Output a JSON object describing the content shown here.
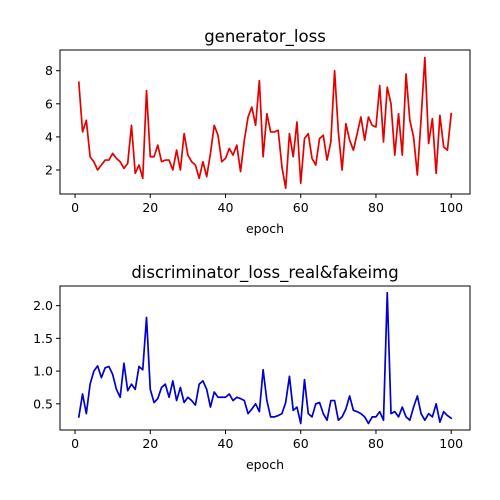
{
  "chart_data": [
    {
      "type": "line",
      "title": "generator_loss",
      "xlabel": "epoch",
      "ylabel": "",
      "xlim": [
        -4,
        105
      ],
      "ylim": [
        0.55,
        9.25
      ],
      "xticks": [
        0,
        20,
        40,
        60,
        80,
        100
      ],
      "yticks": [
        2,
        4,
        6,
        8
      ],
      "grid": false,
      "series": [
        {
          "color": "#e50000",
          "x": [
            1,
            2,
            3,
            4,
            5,
            6,
            7,
            8,
            9,
            10,
            11,
            12,
            13,
            14,
            15,
            16,
            17,
            18,
            19,
            20,
            21,
            22,
            23,
            24,
            25,
            26,
            27,
            28,
            29,
            30,
            31,
            32,
            33,
            34,
            35,
            36,
            37,
            38,
            39,
            40,
            41,
            42,
            43,
            44,
            45,
            46,
            47,
            48,
            49,
            50,
            51,
            52,
            53,
            54,
            55,
            56,
            57,
            58,
            59,
            60,
            61,
            62,
            63,
            64,
            65,
            66,
            67,
            68,
            69,
            70,
            71,
            72,
            73,
            74,
            75,
            76,
            77,
            78,
            79,
            80,
            81,
            82,
            83,
            84,
            85,
            86,
            87,
            88,
            89,
            90,
            91,
            92,
            93,
            94,
            95,
            96,
            97,
            98,
            99,
            100
          ],
          "values": [
            7.3,
            4.3,
            5.0,
            2.8,
            2.5,
            2.0,
            2.3,
            2.6,
            2.6,
            3.0,
            2.7,
            2.5,
            2.1,
            2.4,
            4.7,
            1.8,
            2.3,
            1.5,
            6.8,
            2.8,
            2.8,
            3.5,
            2.5,
            2.6,
            2.6,
            2.0,
            3.2,
            2.0,
            4.2,
            2.9,
            2.5,
            2.3,
            1.5,
            2.5,
            1.6,
            3.0,
            4.7,
            4.1,
            2.5,
            2.7,
            3.3,
            2.9,
            3.5,
            1.9,
            3.8,
            5.2,
            5.8,
            4.7,
            7.4,
            2.8,
            5.4,
            4.3,
            4.3,
            4.4,
            2.2,
            0.9,
            4.2,
            2.8,
            4.9,
            1.2,
            3.9,
            4.2,
            2.7,
            2.3,
            3.9,
            4.1,
            2.6,
            3.7,
            8.0,
            4.3,
            2.0,
            4.8,
            3.8,
            3.2,
            4.2,
            5.2,
            3.8,
            5.2,
            4.7,
            4.6,
            7.1,
            3.7,
            7.0,
            6.0,
            2.9,
            5.4,
            2.9,
            7.8,
            5.0,
            4.0,
            1.7,
            5.1,
            8.8,
            3.6,
            5.1,
            1.8,
            5.3,
            3.4,
            3.2,
            5.4
          ]
        }
      ]
    },
    {
      "type": "line",
      "title": "discriminator_loss_real&fakeimg",
      "xlabel": "epoch",
      "ylabel": "",
      "xlim": [
        -4,
        105
      ],
      "ylim": [
        0.1,
        2.3
      ],
      "xticks": [
        0,
        20,
        40,
        60,
        80,
        100
      ],
      "yticks": [
        0.5,
        1.0,
        1.5,
        2.0
      ],
      "grid": false,
      "series": [
        {
          "color": "#0000d0",
          "x": [
            1,
            2,
            3,
            4,
            5,
            6,
            7,
            8,
            9,
            10,
            11,
            12,
            13,
            14,
            15,
            16,
            17,
            18,
            19,
            20,
            21,
            22,
            23,
            24,
            25,
            26,
            27,
            28,
            29,
            30,
            31,
            32,
            33,
            34,
            35,
            36,
            37,
            38,
            39,
            40,
            41,
            42,
            43,
            44,
            45,
            46,
            47,
            48,
            49,
            50,
            51,
            52,
            53,
            54,
            55,
            56,
            57,
            58,
            59,
            60,
            61,
            62,
            63,
            64,
            65,
            66,
            67,
            68,
            69,
            70,
            71,
            72,
            73,
            74,
            75,
            76,
            77,
            78,
            79,
            80,
            81,
            82,
            83,
            84,
            85,
            86,
            87,
            88,
            89,
            90,
            91,
            92,
            93,
            94,
            95,
            96,
            97,
            98,
            99,
            100
          ],
          "values": [
            0.3,
            0.65,
            0.35,
            0.8,
            1.0,
            1.08,
            0.9,
            1.05,
            1.07,
            0.95,
            0.72,
            0.6,
            1.12,
            0.7,
            0.8,
            0.72,
            1.07,
            1.02,
            1.82,
            0.72,
            0.52,
            0.58,
            0.75,
            0.8,
            0.6,
            0.85,
            0.55,
            0.75,
            0.52,
            0.6,
            0.55,
            0.48,
            0.8,
            0.85,
            0.72,
            0.45,
            0.68,
            0.6,
            0.6,
            0.6,
            0.65,
            0.55,
            0.6,
            0.58,
            0.55,
            0.35,
            0.42,
            0.5,
            0.38,
            1.02,
            0.55,
            0.3,
            0.3,
            0.32,
            0.35,
            0.52,
            0.92,
            0.4,
            0.45,
            0.2,
            0.87,
            0.35,
            0.3,
            0.5,
            0.52,
            0.35,
            0.25,
            0.55,
            0.55,
            0.25,
            0.3,
            0.42,
            0.62,
            0.4,
            0.38,
            0.35,
            0.3,
            0.2,
            0.3,
            0.3,
            0.38,
            0.25,
            2.2,
            0.35,
            0.38,
            0.3,
            0.45,
            0.3,
            0.25,
            0.45,
            0.62,
            0.35,
            0.25,
            0.35,
            0.3,
            0.5,
            0.22,
            0.38,
            0.32,
            0.28
          ]
        }
      ]
    }
  ]
}
